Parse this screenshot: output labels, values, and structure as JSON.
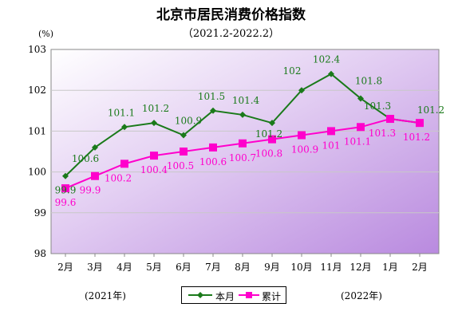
{
  "chart_data": {
    "type": "line",
    "title": "北京市居民消费价格指数",
    "subtitle": "（2021.2-2022.2）",
    "unit": "(%)",
    "categories": [
      "2月",
      "3月",
      "4月",
      "5月",
      "6月",
      "7月",
      "8月",
      "9月",
      "10月",
      "11月",
      "12月",
      "1月",
      "2月"
    ],
    "year_labels": [
      "(2021年)",
      "(2022年)"
    ],
    "ylim": [
      98,
      103
    ],
    "yticks": [
      "98",
      "99",
      "100",
      "101",
      "102",
      "103"
    ],
    "grid": true,
    "legend_position": "bottom",
    "series": [
      {
        "name": "本月",
        "color": "#1a7a1a",
        "marker": "diamond",
        "values": [
          99.9,
          100.6,
          101.1,
          101.2,
          100.9,
          101.5,
          101.4,
          101.2,
          102,
          102.4,
          101.8,
          101.3,
          101.2
        ],
        "labels": [
          "99.9",
          "100.6",
          "101.1",
          "101.2",
          "100.9",
          "101.5",
          "101.4",
          "101.2",
          "102",
          "102.4",
          "101.8",
          "101.3",
          "101.2"
        ]
      },
      {
        "name": "累计",
        "color": "#ff00cc",
        "marker": "square",
        "values": [
          99.6,
          99.9,
          100.2,
          100.4,
          100.5,
          100.6,
          100.7,
          100.8,
          100.9,
          101,
          101.1,
          101.3,
          101.2
        ],
        "labels": [
          "99.6",
          "99.9",
          "100.2",
          "100.4",
          "100.5",
          "100.6",
          "100.7",
          "100.8",
          "100.9",
          "101",
          "101.1",
          "101.3",
          "101.2"
        ]
      }
    ]
  }
}
